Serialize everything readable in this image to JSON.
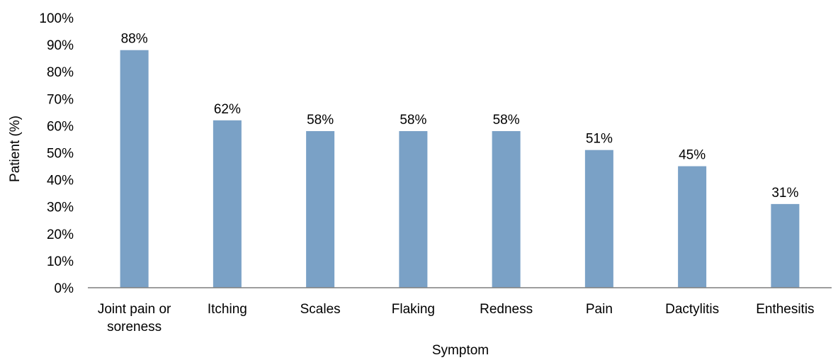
{
  "chart_data": {
    "type": "bar",
    "title": "",
    "xlabel": "Symptom",
    "ylabel": "Patient (%)",
    "ylim": [
      0,
      100
    ],
    "ytick_step": 10,
    "ytick_suffix": "%",
    "grid": false,
    "legend": "none",
    "bar_color": "#7aa1c6",
    "categories": [
      [
        "Joint pain or",
        "soreness"
      ],
      [
        "Itching"
      ],
      [
        "Scales"
      ],
      [
        "Flaking"
      ],
      [
        "Redness"
      ],
      [
        "Pain"
      ],
      [
        "Dactylitis"
      ],
      [
        "Enthesitis"
      ]
    ],
    "values": [
      88,
      62,
      58,
      58,
      58,
      51,
      45,
      31
    ],
    "data_labels": [
      "88%",
      "62%",
      "58%",
      "58%",
      "58%",
      "51%",
      "45%",
      "31%"
    ]
  }
}
